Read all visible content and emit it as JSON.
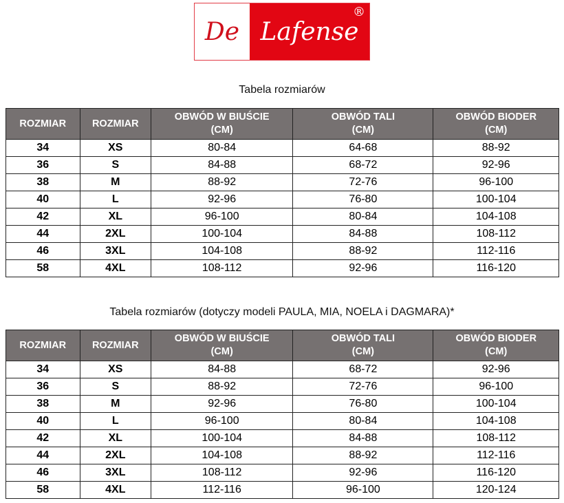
{
  "logo": {
    "left": "De",
    "right": "Lafense",
    "mark": "®",
    "colors": {
      "red": "#e20613"
    }
  },
  "tables": [
    {
      "title": "Tabela rozmiarów",
      "headers": [
        "ROZMIAR",
        "ROZMIAR",
        "OBWÓD W BIUŚCIE (CM)",
        "OBWÓD TALI (CM)",
        "OBWÓD BIODER (CM)"
      ],
      "rows": [
        [
          "34",
          "XS",
          "80-84",
          "64-68",
          "88-92"
        ],
        [
          "36",
          "S",
          "84-88",
          "68-72",
          "92-96"
        ],
        [
          "38",
          "M",
          "88-92",
          "72-76",
          "96-100"
        ],
        [
          "40",
          "L",
          "92-96",
          "76-80",
          "100-104"
        ],
        [
          "42",
          "XL",
          "96-100",
          "80-84",
          "104-108"
        ],
        [
          "44",
          "2XL",
          "100-104",
          "84-88",
          "108-112"
        ],
        [
          "46",
          "3XL",
          "104-108",
          "88-92",
          "112-116"
        ],
        [
          "58",
          "4XL",
          "108-112",
          "92-96",
          "116-120"
        ]
      ]
    },
    {
      "title": "Tabela rozmiarów (dotyczy modeli PAULA, MIA, NOELA i DAGMARA)*",
      "headers": [
        "ROZMIAR",
        "ROZMIAR",
        "OBWÓD W BIUŚCIE (CM)",
        "OBWÓD TALI (CM)",
        "OBWÓD BIODER (CM)"
      ],
      "rows": [
        [
          "34",
          "XS",
          "84-88",
          "68-72",
          "92-96"
        ],
        [
          "36",
          "S",
          "88-92",
          "72-76",
          "96-100"
        ],
        [
          "38",
          "M",
          "92-96",
          "76-80",
          "100-104"
        ],
        [
          "40",
          "L",
          "96-100",
          "80-84",
          "104-108"
        ],
        [
          "42",
          "XL",
          "100-104",
          "84-88",
          "108-112"
        ],
        [
          "44",
          "2XL",
          "104-108",
          "88-92",
          "112-116"
        ],
        [
          "46",
          "3XL",
          "108-112",
          "92-96",
          "116-120"
        ],
        [
          "58",
          "4XL",
          "112-116",
          "96-100",
          "120-124"
        ]
      ]
    }
  ]
}
